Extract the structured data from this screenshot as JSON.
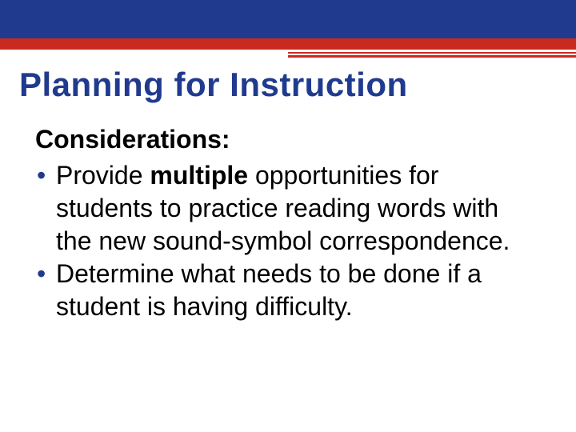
{
  "colors": {
    "blue": "#203a8e",
    "red": "#c82a20",
    "text": "#000000",
    "background": "#ffffff"
  },
  "title": "Planning for Instruction",
  "subheading": "Considerations:",
  "bullets": [
    {
      "prefix": "Provide ",
      "bold": "multiple",
      "suffix": " opportunities for students to practice reading words with the new sound-symbol correspondence."
    },
    {
      "prefix": "Determine what needs to be done if a student is having difficulty.",
      "bold": "",
      "suffix": ""
    }
  ]
}
